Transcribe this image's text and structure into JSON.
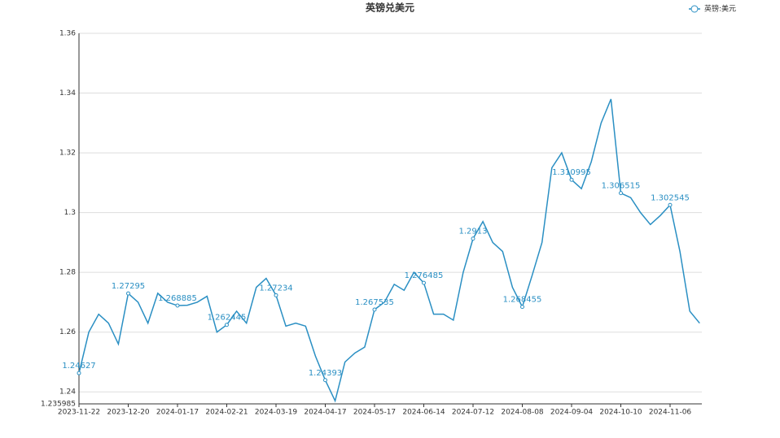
{
  "chart_data": {
    "type": "line",
    "title": "英镑兑美元",
    "categories": [
      "2023-11-22",
      null,
      null,
      null,
      null,
      "2023-12-20",
      null,
      null,
      null,
      null,
      "2024-01-17",
      null,
      null,
      null,
      null,
      "2024-02-21",
      null,
      null,
      null,
      null,
      "2024-03-19",
      null,
      null,
      null,
      null,
      "2024-04-17",
      null,
      null,
      null,
      null,
      "2024-05-17",
      null,
      null,
      null,
      null,
      "2024-06-14",
      null,
      null,
      null,
      null,
      "2024-07-12",
      null,
      null,
      null,
      null,
      "2024-08-08",
      null,
      null,
      null,
      null,
      "2024-09-04",
      null,
      null,
      null,
      null,
      "2024-10-10",
      null,
      null,
      null,
      null,
      "2024-11-06",
      null,
      null,
      null
    ],
    "series": [
      {
        "name": "英镑:美元",
        "color": "#2a8fc3",
        "values": [
          1.24627,
          1.26,
          1.266,
          1.263,
          1.256,
          1.27295,
          1.27,
          1.263,
          1.273,
          1.27,
          1.268885,
          1.269,
          1.27,
          1.272,
          1.26,
          1.262445,
          1.267,
          1.263,
          1.275,
          1.278,
          1.27234,
          1.262,
          1.263,
          1.262,
          1.252,
          1.24393,
          1.237,
          1.25,
          1.253,
          1.255,
          1.267535,
          1.27,
          1.276,
          1.274,
          1.28,
          1.276485,
          1.266,
          1.266,
          1.264,
          1.28,
          1.2913,
          1.297,
          1.29,
          1.287,
          1.275,
          1.268455,
          1.279,
          1.29,
          1.315,
          1.32,
          1.310995,
          1.308,
          1.317,
          1.33,
          1.338,
          1.306515,
          1.305,
          1.3,
          1.296,
          1.299,
          1.302545,
          1.287,
          1.267,
          1.263
        ],
        "value_labels": [
          "1.24627",
          null,
          null,
          null,
          null,
          "1.27295",
          null,
          null,
          null,
          null,
          "1.268885",
          null,
          null,
          null,
          null,
          "1.262445",
          null,
          null,
          null,
          null,
          "1.27234",
          null,
          null,
          null,
          null,
          "1.24393",
          null,
          null,
          null,
          null,
          "1.267535",
          null,
          null,
          null,
          null,
          "1.276485",
          null,
          null,
          null,
          null,
          "1.2913",
          null,
          null,
          null,
          null,
          "1.268455",
          null,
          null,
          null,
          null,
          "1.310995",
          null,
          null,
          null,
          null,
          "1.306515",
          null,
          null,
          null,
          null,
          "1.302545",
          null,
          null,
          null
        ]
      }
    ],
    "ylim": [
      1.235985,
      1.36
    ],
    "yticks": [
      1.235985,
      1.24,
      1.26,
      1.28,
      1.3,
      1.32,
      1.34,
      1.36
    ],
    "grid": true,
    "legend": "top-right"
  }
}
